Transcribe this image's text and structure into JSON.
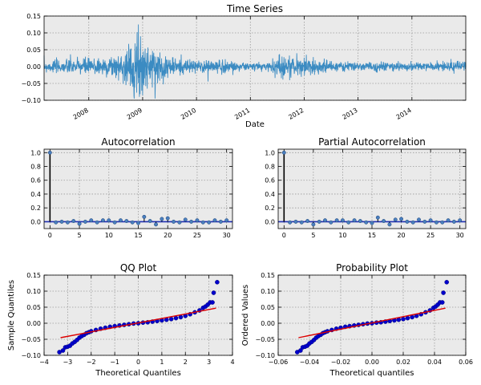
{
  "colors": {
    "panel_bg": "#eaeaea",
    "grid": "#9a9a9a",
    "series": "#3b8bc2",
    "stem": "#000000",
    "marker": "#4a7fbf",
    "zero_line": "#1f2fb4",
    "qq_points": "#0000cc",
    "fit_line": "#dd0000"
  },
  "chart_data": [
    {
      "id": "time_series",
      "type": "line",
      "title": "Time Series",
      "xlabel": "Date",
      "ylabel": "",
      "x_range": [
        2007.17,
        2015.0
      ],
      "ylim": [
        -0.1,
        0.15
      ],
      "y_ticks": [
        -0.1,
        -0.05,
        0.0,
        0.05,
        0.1,
        0.15
      ],
      "y_tick_labels": [
        "−0.10",
        "−0.05",
        "0.00",
        "0.05",
        "0.10",
        "0.15"
      ],
      "x_ticks": [
        2008,
        2009,
        2010,
        2011,
        2012,
        2013,
        2014
      ],
      "x_tick_labels": [
        "2008",
        "2009",
        "2010",
        "2011",
        "2012",
        "2013",
        "2014"
      ],
      "x_tick_rotation_deg": -30,
      "volatility_profile": [
        [
          2007.17,
          0.012
        ],
        [
          2007.5,
          0.014
        ],
        [
          2007.9,
          0.018
        ],
        [
          2008.3,
          0.02
        ],
        [
          2008.6,
          0.026
        ],
        [
          2008.8,
          0.045
        ],
        [
          2009.0,
          0.05
        ],
        [
          2009.25,
          0.035
        ],
        [
          2009.6,
          0.018
        ],
        [
          2010.0,
          0.012
        ],
        [
          2010.35,
          0.018
        ],
        [
          2010.6,
          0.012
        ],
        [
          2011.0,
          0.008
        ],
        [
          2011.3,
          0.01
        ],
        [
          2011.6,
          0.026
        ],
        [
          2011.9,
          0.02
        ],
        [
          2012.2,
          0.015
        ],
        [
          2012.6,
          0.01
        ],
        [
          2013.0,
          0.008
        ],
        [
          2013.5,
          0.01
        ],
        [
          2014.0,
          0.008
        ],
        [
          2014.6,
          0.01
        ],
        [
          2015.0,
          0.012
        ]
      ],
      "extremes": [
        [
          2008.92,
          0.125
        ],
        [
          2008.96,
          0.09
        ],
        [
          2008.94,
          -0.09
        ],
        [
          2009.0,
          -0.085
        ]
      ],
      "grid": true
    },
    {
      "id": "acf",
      "type": "stem",
      "title": "Autocorrelation",
      "xlim": [
        -1,
        31
      ],
      "ylim": [
        -0.1,
        1.05
      ],
      "x_ticks": [
        0,
        5,
        10,
        15,
        20,
        25,
        30
      ],
      "x_tick_labels": [
        "0",
        "5",
        "10",
        "15",
        "20",
        "25",
        "30"
      ],
      "y_ticks": [
        0.0,
        0.2,
        0.4,
        0.6,
        0.8,
        1.0
      ],
      "y_tick_labels": [
        "0.0",
        "0.2",
        "0.4",
        "0.6",
        "0.8",
        "1.0"
      ],
      "lags": [
        0,
        1,
        2,
        3,
        4,
        5,
        6,
        7,
        8,
        9,
        10,
        11,
        12,
        13,
        14,
        15,
        16,
        17,
        18,
        19,
        20,
        21,
        22,
        23,
        24,
        25,
        26,
        27,
        28,
        29,
        30
      ],
      "values": [
        1.0,
        -0.01,
        0.0,
        -0.01,
        0.01,
        -0.03,
        0.0,
        0.02,
        -0.01,
        0.02,
        0.02,
        -0.01,
        0.02,
        0.01,
        -0.01,
        -0.02,
        0.07,
        0.01,
        -0.04,
        0.04,
        0.05,
        0.0,
        -0.01,
        0.03,
        0.0,
        0.02,
        -0.01,
        -0.01,
        0.02,
        0.0,
        0.02
      ],
      "grid": true
    },
    {
      "id": "pacf",
      "type": "stem",
      "title": "Partial Autocorrelation",
      "xlim": [
        -1,
        31
      ],
      "ylim": [
        -0.1,
        1.05
      ],
      "x_ticks": [
        0,
        5,
        10,
        15,
        20,
        25,
        30
      ],
      "x_tick_labels": [
        "0",
        "5",
        "10",
        "15",
        "20",
        "25",
        "30"
      ],
      "y_ticks": [
        0.0,
        0.2,
        0.4,
        0.6,
        0.8,
        1.0
      ],
      "y_tick_labels": [
        "0.0",
        "0.2",
        "0.4",
        "0.6",
        "0.8",
        "1.0"
      ],
      "lags": [
        0,
        1,
        2,
        3,
        4,
        5,
        6,
        7,
        8,
        9,
        10,
        11,
        12,
        13,
        14,
        15,
        16,
        17,
        18,
        19,
        20,
        21,
        22,
        23,
        24,
        25,
        26,
        27,
        28,
        29,
        30
      ],
      "values": [
        1.0,
        -0.01,
        0.0,
        -0.01,
        0.01,
        -0.04,
        0.0,
        0.02,
        -0.01,
        0.02,
        0.02,
        -0.01,
        0.02,
        0.01,
        -0.01,
        -0.02,
        0.06,
        0.01,
        -0.04,
        0.03,
        0.04,
        0.0,
        -0.01,
        0.03,
        0.0,
        0.02,
        -0.01,
        -0.01,
        0.02,
        0.0,
        0.02
      ],
      "grid": true
    },
    {
      "id": "qq",
      "type": "scatter",
      "title": "QQ Plot",
      "xlabel": "Theoretical Quantiles",
      "ylabel": "Sample Quantiles",
      "xlim": [
        -4,
        4
      ],
      "ylim": [
        -0.1,
        0.15
      ],
      "x_ticks": [
        -4,
        -3,
        -2,
        -1,
        0,
        1,
        2,
        3,
        4
      ],
      "x_tick_labels": [
        "−4",
        "−3",
        "−2",
        "−1",
        "0",
        "1",
        "2",
        "3",
        "4"
      ],
      "y_ticks": [
        -0.1,
        -0.05,
        0.0,
        0.05,
        0.1,
        0.15
      ],
      "y_tick_labels": [
        "−0.10",
        "−0.05",
        "0.00",
        "0.05",
        "0.10",
        "0.15"
      ],
      "fit_line": [
        [
          -3.3,
          -0.045
        ],
        [
          3.3,
          0.047
        ]
      ],
      "points": [
        [
          -3.35,
          -0.09
        ],
        [
          -3.2,
          -0.085
        ],
        [
          -3.1,
          -0.075
        ],
        [
          -3.0,
          -0.073
        ],
        [
          -2.9,
          -0.07
        ],
        [
          -2.8,
          -0.063
        ],
        [
          -2.7,
          -0.058
        ],
        [
          -2.6,
          -0.052
        ],
        [
          -2.5,
          -0.045
        ],
        [
          -2.4,
          -0.04
        ],
        [
          -2.3,
          -0.036
        ],
        [
          -2.2,
          -0.031
        ],
        [
          -2.1,
          -0.028
        ],
        [
          -2.0,
          -0.025
        ],
        [
          -1.8,
          -0.021
        ],
        [
          -1.6,
          -0.017
        ],
        [
          -1.4,
          -0.014
        ],
        [
          -1.2,
          -0.011
        ],
        [
          -1.0,
          -0.009
        ],
        [
          -0.8,
          -0.007
        ],
        [
          -0.6,
          -0.005
        ],
        [
          -0.4,
          -0.003
        ],
        [
          -0.2,
          -0.001
        ],
        [
          0.0,
          0.0
        ],
        [
          0.2,
          0.002
        ],
        [
          0.4,
          0.003
        ],
        [
          0.6,
          0.005
        ],
        [
          0.8,
          0.007
        ],
        [
          1.0,
          0.009
        ],
        [
          1.2,
          0.011
        ],
        [
          1.4,
          0.013
        ],
        [
          1.6,
          0.016
        ],
        [
          1.8,
          0.019
        ],
        [
          2.0,
          0.023
        ],
        [
          2.2,
          0.028
        ],
        [
          2.4,
          0.034
        ],
        [
          2.6,
          0.04
        ],
        [
          2.75,
          0.048
        ],
        [
          2.85,
          0.052
        ],
        [
          2.95,
          0.058
        ],
        [
          3.05,
          0.065
        ],
        [
          3.15,
          0.065
        ],
        [
          3.2,
          0.095
        ],
        [
          3.35,
          0.128
        ]
      ],
      "grid": true
    },
    {
      "id": "prob",
      "type": "scatter",
      "title": "Probability Plot",
      "xlabel": "Theoretical quantiles",
      "ylabel": "Ordered Values",
      "xlim": [
        -0.06,
        0.06
      ],
      "ylim": [
        -0.1,
        0.15
      ],
      "x_ticks": [
        -0.06,
        -0.04,
        -0.02,
        0.0,
        0.02,
        0.04,
        0.06
      ],
      "x_tick_labels": [
        "−0.06",
        "−0.04",
        "−0.02",
        "0.00",
        "0.02",
        "0.04",
        "0.06"
      ],
      "y_ticks": [
        -0.1,
        -0.05,
        0.0,
        0.05,
        0.1,
        0.15
      ],
      "y_tick_labels": [
        "−0.10",
        "−0.05",
        "0.00",
        "0.05",
        "0.10",
        "0.15"
      ],
      "fit_line": [
        [
          -0.047,
          -0.045
        ],
        [
          0.047,
          0.047
        ]
      ],
      "points": [
        [
          -0.0478,
          -0.09
        ],
        [
          -0.0457,
          -0.085
        ],
        [
          -0.0443,
          -0.075
        ],
        [
          -0.0428,
          -0.073
        ],
        [
          -0.0414,
          -0.07
        ],
        [
          -0.04,
          -0.063
        ],
        [
          -0.0385,
          -0.058
        ],
        [
          -0.0371,
          -0.052
        ],
        [
          -0.0357,
          -0.045
        ],
        [
          -0.0343,
          -0.04
        ],
        [
          -0.0328,
          -0.036
        ],
        [
          -0.0314,
          -0.031
        ],
        [
          -0.03,
          -0.028
        ],
        [
          -0.0285,
          -0.025
        ],
        [
          -0.0257,
          -0.021
        ],
        [
          -0.0228,
          -0.017
        ],
        [
          -0.02,
          -0.014
        ],
        [
          -0.0171,
          -0.011
        ],
        [
          -0.0143,
          -0.009
        ],
        [
          -0.0114,
          -0.007
        ],
        [
          -0.0086,
          -0.005
        ],
        [
          -0.0057,
          -0.003
        ],
        [
          -0.0029,
          -0.001
        ],
        [
          0.0,
          0.0
        ],
        [
          0.0029,
          0.002
        ],
        [
          0.0057,
          0.003
        ],
        [
          0.0086,
          0.005
        ],
        [
          0.0114,
          0.007
        ],
        [
          0.0143,
          0.009
        ],
        [
          0.0171,
          0.011
        ],
        [
          0.02,
          0.013
        ],
        [
          0.0228,
          0.016
        ],
        [
          0.0257,
          0.019
        ],
        [
          0.0285,
          0.023
        ],
        [
          0.0314,
          0.028
        ],
        [
          0.0343,
          0.034
        ],
        [
          0.0371,
          0.04
        ],
        [
          0.0393,
          0.048
        ],
        [
          0.0407,
          0.052
        ],
        [
          0.0421,
          0.058
        ],
        [
          0.0435,
          0.065
        ],
        [
          0.045,
          0.065
        ],
        [
          0.0457,
          0.095
        ],
        [
          0.0478,
          0.128
        ]
      ],
      "grid": true
    }
  ]
}
